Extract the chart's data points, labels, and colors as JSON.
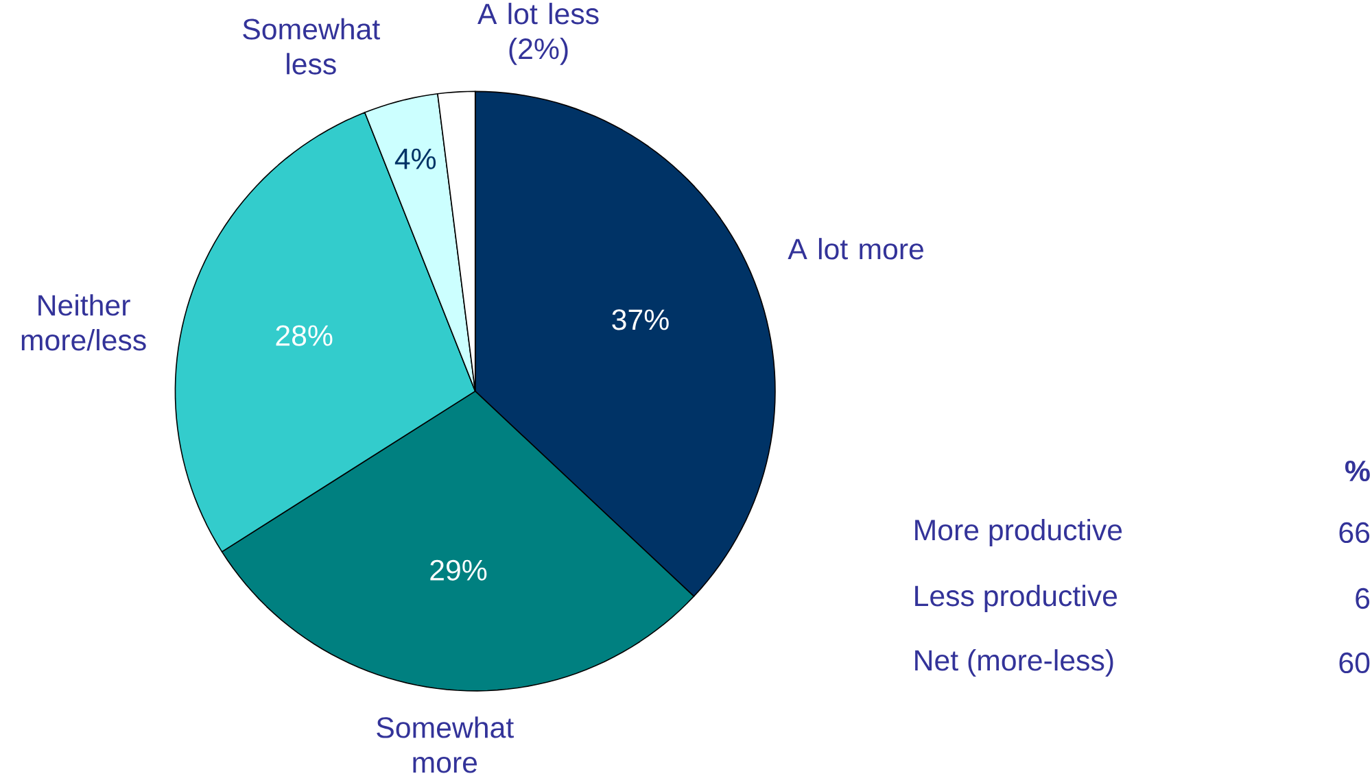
{
  "chart_data": {
    "type": "pie",
    "categories": [
      "A lot more",
      "Somewhat more",
      "Neither more/less",
      "Somewhat less",
      "A lot less (2%)"
    ],
    "values": [
      37,
      29,
      28,
      4,
      2
    ],
    "colors": [
      "#003366",
      "#008080",
      "#33cccc",
      "#ccffff",
      "#ffffff"
    ],
    "value_labels": [
      "37%",
      "29%",
      "28%",
      "4%",
      null
    ],
    "annotations": [
      "%",
      "More productive",
      "66",
      "Less productive",
      "6",
      "Net (more-less)",
      "60"
    ]
  }
}
